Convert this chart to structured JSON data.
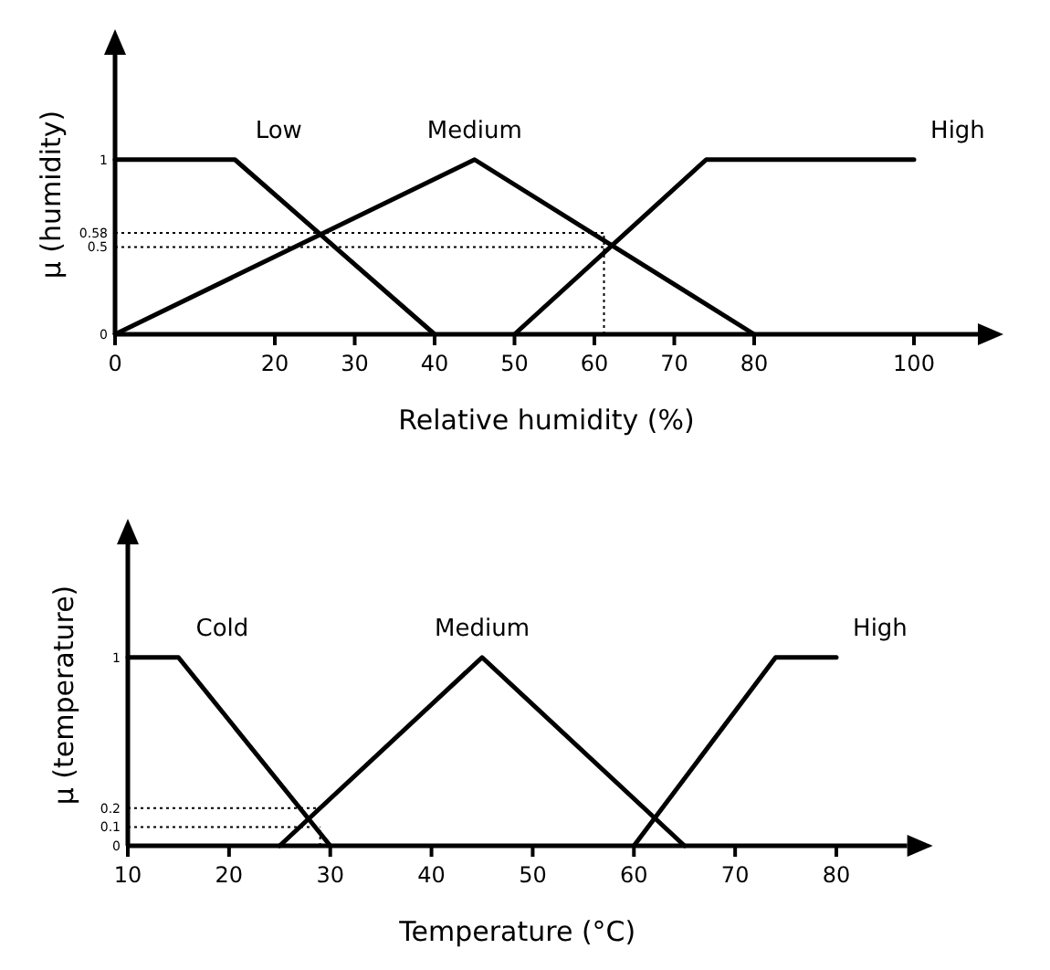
{
  "chart_data": [
    {
      "type": "line",
      "xlabel": "Relative humidity (%)",
      "ylabel": "μ (humidity)",
      "xlim": [
        0,
        108
      ],
      "xticks": [
        0,
        20,
        30,
        40,
        50,
        60,
        70,
        80,
        100
      ],
      "ylim": [
        0,
        1.6
      ],
      "yticks": [
        0,
        0.5,
        0.58,
        1
      ],
      "series": [
        {
          "name": "Low",
          "color": "#000000",
          "x": [
            0,
            15,
            40
          ],
          "values": [
            1,
            1,
            0
          ]
        },
        {
          "name": "Medium",
          "color": "#000000",
          "x": [
            0,
            45,
            80
          ],
          "values": [
            0,
            1,
            0
          ]
        },
        {
          "name": "High",
          "color": "#000000",
          "x": [
            50,
            74,
            100
          ],
          "values": [
            0,
            1,
            1
          ]
        },
        {
          "color": "#000000",
          "line_style": "dotted",
          "x": [
            0,
            61.2
          ],
          "values": [
            0.58,
            0.58
          ]
        },
        {
          "color": "#000000",
          "line_style": "dotted",
          "x": [
            0,
            61.2
          ],
          "values": [
            0.5,
            0.5
          ]
        },
        {
          "color": "#000000",
          "line_style": "dotted",
          "x": [
            61.2,
            61.2
          ],
          "values": [
            0,
            0.58
          ]
        }
      ]
    },
    {
      "type": "line",
      "xlabel": "Temperature (°C)",
      "ylabel": "μ (temperature)",
      "xlim": [
        10,
        87
      ],
      "xticks": [
        10,
        20,
        30,
        40,
        50,
        60,
        70,
        80
      ],
      "ylim": [
        0,
        1.6
      ],
      "yticks": [
        0,
        0.1,
        0.2,
        1
      ],
      "series": [
        {
          "name": "Cold",
          "color": "#000000",
          "x": [
            10,
            15,
            30
          ],
          "values": [
            1,
            1,
            0
          ]
        },
        {
          "name": "Medium",
          "color": "#000000",
          "x": [
            25,
            45,
            65
          ],
          "values": [
            0,
            1,
            0
          ]
        },
        {
          "name": "High",
          "color": "#000000",
          "x": [
            60,
            74,
            80
          ],
          "values": [
            0,
            1,
            1
          ]
        },
        {
          "color": "#000000",
          "line_style": "dotted",
          "x": [
            10,
            29
          ],
          "values": [
            0.2,
            0.2
          ]
        },
        {
          "color": "#000000",
          "line_style": "dotted",
          "x": [
            10,
            29
          ],
          "values": [
            0.1,
            0.1
          ]
        },
        {
          "color": "#000000",
          "line_style": "dotted",
          "x": [
            29,
            29
          ],
          "values": [
            0,
            0.1
          ]
        }
      ]
    }
  ]
}
